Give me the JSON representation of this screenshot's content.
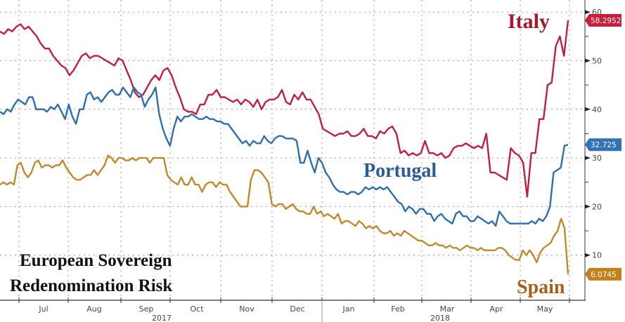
{
  "chart_data": {
    "type": "line",
    "title": "European Sovereign Redenomination Risk",
    "title_lines": [
      "European Sovereign",
      "Redenomination Risk"
    ],
    "xlabel": "",
    "ylabel": "",
    "ylim": [
      0,
      60
    ],
    "yticks": [
      10,
      20,
      30,
      40,
      50,
      60
    ],
    "grid": true,
    "x_range": [
      "2017-06-15",
      "2018-05-31"
    ],
    "month_labels": [
      "Jul",
      "Aug",
      "Sep",
      "Oct",
      "Nov",
      "Dec",
      "Jan",
      "Feb",
      "Mar",
      "Apr",
      "May"
    ],
    "year_labels": [
      "2017",
      "2018"
    ],
    "series": [
      {
        "name": "Italy",
        "color": "#c0203c",
        "last_value": "58.2952",
        "values": [
          56,
          55.5,
          56.5,
          56,
          57,
          57.5,
          56.5,
          57,
          56,
          55,
          53.5,
          52.5,
          52.5,
          51,
          50,
          49,
          48.5,
          47,
          48,
          49.5,
          51,
          51.5,
          50.5,
          51,
          51,
          50.5,
          50,
          49.5,
          49,
          50.5,
          50,
          48,
          46,
          43.5,
          42.5,
          43,
          44.5,
          46,
          47,
          46,
          48,
          48.5,
          47,
          44.5,
          42.5,
          40,
          39.5,
          39.5,
          39,
          41,
          41,
          43,
          43,
          44,
          42.5,
          42.5,
          42,
          41.5,
          42,
          41,
          42,
          41.5,
          40.5,
          42,
          40,
          41.5,
          42,
          42,
          42.5,
          44,
          41.5,
          41,
          43,
          42,
          43.5,
          42,
          42,
          40.5,
          39,
          36,
          35.5,
          35,
          34.5,
          35,
          35,
          35.5,
          34.5,
          34.5,
          35,
          36,
          34.5,
          34.5,
          34,
          35.5,
          35,
          36,
          36.5,
          35,
          31,
          31.5,
          30.5,
          31,
          30.5,
          31,
          33.5,
          31,
          31,
          30.5,
          31,
          30,
          30.5,
          32,
          32.5,
          32.5,
          33,
          32.5,
          32,
          32.5,
          32,
          35,
          27,
          27,
          26.5,
          26,
          25.5,
          32,
          31,
          30.5,
          29,
          22,
          31,
          31,
          38,
          38,
          45,
          45.5,
          53,
          55,
          51,
          58.3
        ]
      },
      {
        "name": "Portugal",
        "color": "#2f6fad",
        "last_value": "32.725",
        "values": [
          39.5,
          39,
          40,
          39.5,
          41,
          42,
          41.5,
          41,
          42.5,
          42.5,
          40,
          40,
          40,
          39.5,
          40.5,
          40,
          41,
          39.5,
          38,
          41,
          38.5,
          37,
          40,
          40,
          43,
          43.5,
          42,
          42.5,
          41.5,
          42.5,
          43.5,
          44,
          43,
          43,
          44.5,
          43.5,
          42.5,
          44.5,
          43.5,
          43,
          40.5,
          42,
          43,
          44.5,
          39,
          36,
          34,
          32.5,
          36,
          38.5,
          37.5,
          38.5,
          38.5,
          39,
          38.5,
          38,
          38,
          38.5,
          38,
          38,
          37.5,
          37.5,
          37,
          37,
          36,
          35,
          34,
          33,
          33.5,
          32.5,
          33.5,
          33,
          33,
          34.5,
          33.5,
          33,
          34,
          34.5,
          34.5,
          34,
          34,
          34,
          33.5,
          29,
          29,
          31.5,
          29,
          27,
          30,
          29,
          27,
          26,
          24.5,
          23.5,
          23,
          23,
          22.5,
          23,
          23,
          22.5,
          23,
          24,
          23.5,
          24,
          23.5,
          24,
          23.5,
          24,
          23,
          22,
          21,
          20.5,
          19,
          20,
          19.5,
          18.5,
          19.5,
          19.5,
          18.5,
          18.5,
          17,
          18,
          18.5,
          17.5,
          17,
          16.5,
          18.5,
          19,
          18,
          18,
          17,
          17,
          18,
          17.5,
          17,
          16.5,
          17,
          16,
          19,
          18,
          17,
          16.5,
          16.5,
          16.5,
          16.5,
          16.5,
          16.5,
          17,
          16.5,
          17.5,
          17,
          18,
          20,
          27,
          27.5,
          28,
          32.5,
          32.7
        ]
      },
      {
        "name": "Spain",
        "color": "#c08a2c",
        "last_value": "6.0745",
        "values": [
          24.5,
          25,
          24.5,
          25,
          24.5,
          28.5,
          29,
          27,
          26,
          27,
          29,
          29.5,
          28,
          28.5,
          28.5,
          28,
          28.5,
          28.5,
          29.5,
          28,
          27,
          26,
          25.5,
          25.5,
          26,
          26.5,
          26.5,
          27.5,
          26.5,
          27.5,
          28.5,
          30.5,
          30,
          29,
          30,
          30,
          29.5,
          29.5,
          30,
          29.5,
          30,
          30,
          30,
          29,
          30,
          30,
          30,
          30,
          26.5,
          25.5,
          25,
          24.5,
          26,
          24.5,
          24.5,
          26,
          24.5,
          24.5,
          23,
          24.5,
          25,
          25,
          24,
          25,
          24.5,
          24.5,
          23,
          22,
          21,
          20,
          20,
          20,
          25.5,
          27.5,
          27.5,
          27,
          26,
          25,
          20.5,
          20,
          20.5,
          20.5,
          19.5,
          20,
          20.5,
          19.5,
          19,
          19,
          18.5,
          18.5,
          20,
          18.5,
          19,
          18,
          18.5,
          18,
          17.5,
          18.5,
          16.5,
          17,
          17,
          16.5,
          16,
          17,
          16.5,
          15.5,
          16,
          15.5,
          16,
          15,
          14.5,
          14.5,
          15,
          14,
          14.5,
          14,
          15,
          14.5,
          14,
          13.5,
          13,
          13,
          12.5,
          12,
          12,
          12.5,
          12,
          12,
          11.5,
          12,
          11.5,
          11.5,
          11,
          11.5,
          12,
          11.5,
          11.5,
          11,
          11.5,
          11,
          11,
          11,
          11,
          11.5,
          11.5,
          11,
          10,
          9.5,
          9,
          9,
          11,
          10,
          11,
          10,
          8.5,
          10.5,
          11.5,
          12,
          12.5,
          14,
          15,
          17.5,
          15.5,
          6.07
        ]
      }
    ]
  }
}
